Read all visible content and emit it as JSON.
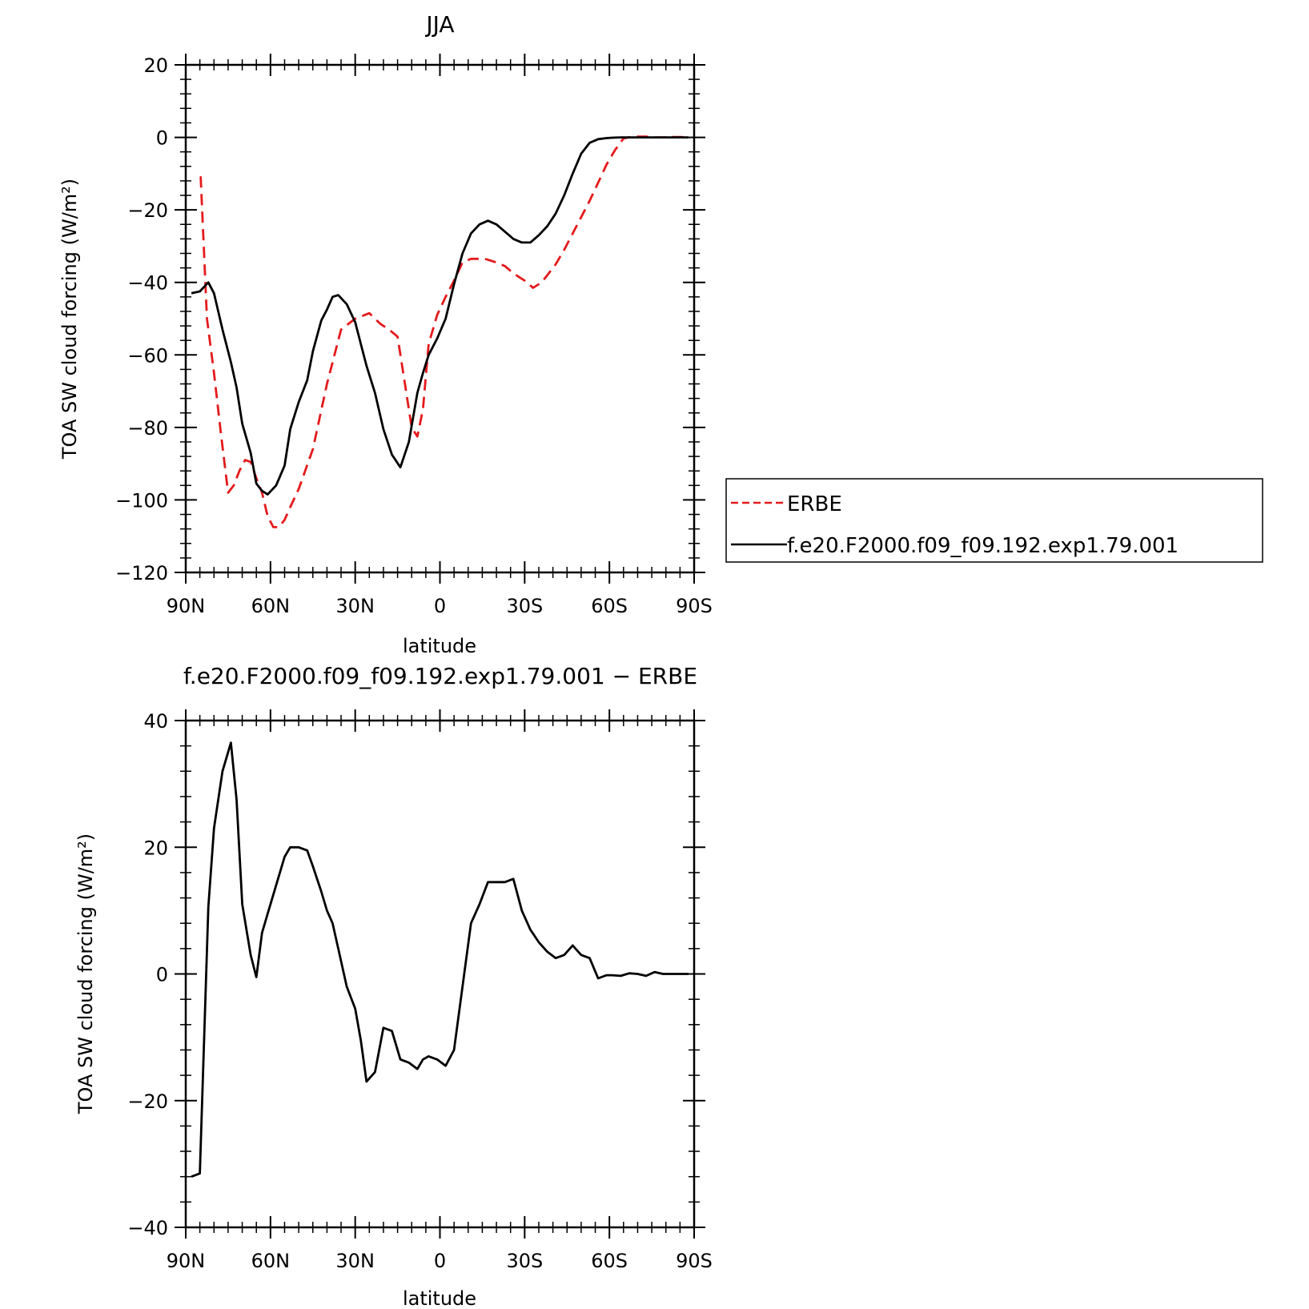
{
  "chart_data": [
    {
      "type": "line",
      "title": "JJA",
      "xlabel": "latitude",
      "ylabel": "TOA SW cloud forcing (W/m²)",
      "xlim": [
        90,
        -90
      ],
      "ylim": [
        -120,
        20
      ],
      "xticks": [
        90,
        60,
        30,
        0,
        -30,
        -60,
        -90
      ],
      "xtick_labels": [
        "90N",
        "60N",
        "30N",
        "0",
        "30S",
        "60S",
        "90S"
      ],
      "yticks": [
        20,
        0,
        -20,
        -40,
        -60,
        -80,
        -100,
        -120
      ],
      "ytick_labels": [
        "20",
        "0",
        "−20",
        "−40",
        "−60",
        "−80",
        "−100",
        "−120"
      ],
      "legend_position": "right",
      "series": [
        {
          "name": "ERBE",
          "color": "#e41a1c",
          "style": "dashed",
          "x": [
            85,
            84.7,
            82.5,
            80,
            77.5,
            75,
            73,
            71,
            69,
            67,
            65,
            63,
            61,
            59,
            57,
            55,
            53,
            50,
            45,
            40,
            35,
            30,
            25,
            21,
            18,
            15,
            12,
            10,
            8,
            6,
            4,
            1,
            -2,
            -5,
            -8,
            -11,
            -14,
            -16,
            -20,
            -23,
            -26,
            -30,
            -33,
            -36,
            -38,
            -41,
            -44,
            -47,
            -50,
            -53,
            -56,
            -59,
            -62,
            -65,
            -68,
            -70,
            -73,
            -76,
            -79,
            -82,
            -85,
            -88
          ],
          "y": [
            -11,
            -11,
            -50,
            -65,
            -82,
            -98,
            -96,
            -92,
            -89,
            -89.5,
            -94,
            -98,
            -104.5,
            -107.5,
            -107.5,
            -105.5,
            -102,
            -97,
            -86,
            -68,
            -53,
            -50,
            -48.5,
            -51.5,
            -53,
            -55,
            -70,
            -80,
            -82.5,
            -75,
            -57,
            -49,
            -44,
            -39.5,
            -34.5,
            -33.5,
            -33.5,
            -33.5,
            -34.5,
            -35.5,
            -37.5,
            -39.5,
            -41.5,
            -40,
            -38,
            -35,
            -31,
            -26.5,
            -22,
            -17.5,
            -12.5,
            -7.5,
            -3.5,
            -0.3,
            0.2,
            0.2,
            0.2,
            0,
            0,
            0.1,
            0.1,
            0
          ]
        },
        {
          "name": "f.e20.F2000.f09_f09.192.exp1.79.001",
          "color": "#000000",
          "style": "solid",
          "x": [
            88,
            85,
            82,
            80,
            77,
            74,
            72,
            70,
            67,
            65,
            63,
            61,
            58,
            55,
            53,
            50,
            47,
            45,
            42,
            40,
            38,
            36,
            33,
            30,
            28,
            26,
            23,
            20,
            17,
            14,
            11,
            8,
            6,
            4,
            1,
            -2,
            -5,
            -8,
            -11,
            -14,
            -17,
            -20,
            -23,
            -26,
            -29,
            -32,
            -35,
            -38,
            -41,
            -44,
            -47,
            -50,
            -53,
            -56,
            -59,
            -61,
            -64,
            -67,
            -70,
            -73,
            -76,
            -79,
            -82,
            -85,
            -88
          ],
          "y": [
            -43,
            -42.5,
            -40,
            -43,
            -53,
            -62,
            -69,
            -79,
            -87,
            -95.5,
            -97.5,
            -98.5,
            -96,
            -90.5,
            -80.5,
            -73,
            -67,
            -59,
            -50.5,
            -47.5,
            -44,
            -43.5,
            -46,
            -51,
            -57,
            -63,
            -70.5,
            -80.5,
            -87.5,
            -91,
            -84,
            -70.5,
            -65,
            -60,
            -55.5,
            -50,
            -40.5,
            -32,
            -26.5,
            -24,
            -23,
            -24,
            -26,
            -28,
            -29,
            -29,
            -27,
            -24.5,
            -21,
            -16,
            -10,
            -4.5,
            -1.5,
            -0.5,
            -0.2,
            -0.1,
            0,
            0,
            0,
            0,
            0,
            0,
            0,
            0,
            0
          ]
        }
      ]
    },
    {
      "type": "line",
      "title": "f.e20.F2000.f09_f09.192.exp1.79.001 − ERBE",
      "xlabel": "latitude",
      "ylabel": "TOA SW cloud forcing (W/m²)",
      "xlim": [
        90,
        -90
      ],
      "ylim": [
        -40,
        40
      ],
      "xticks": [
        90,
        60,
        30,
        0,
        -30,
        -60,
        -90
      ],
      "xtick_labels": [
        "90N",
        "60N",
        "30N",
        "0",
        "30S",
        "60S",
        "90S"
      ],
      "yticks": [
        40,
        20,
        0,
        -20,
        -40
      ],
      "ytick_labels": [
        "40",
        "20",
        "0",
        "−20",
        "−40"
      ],
      "series": [
        {
          "name": "",
          "color": "#000000",
          "style": "solid",
          "x": [
            88,
            85,
            82,
            80,
            77,
            74,
            72,
            70,
            67,
            65,
            63,
            61,
            58,
            55,
            53,
            50,
            47,
            45,
            42,
            40,
            38,
            36,
            33,
            30,
            28,
            26,
            23,
            20,
            17,
            14,
            11,
            8,
            6,
            4,
            1,
            -2,
            -5,
            -8,
            -11,
            -14,
            -17,
            -20,
            -23,
            -26,
            -29,
            -32,
            -35,
            -38,
            -41,
            -44,
            -47,
            -50,
            -53,
            -56,
            -59,
            -61,
            -64,
            -67,
            -70,
            -73,
            -76,
            -79,
            -82,
            -85,
            -88
          ],
          "y": [
            -32,
            -31.5,
            10.5,
            23,
            32,
            36.5,
            27.5,
            11,
            3,
            -0.5,
            6.5,
            9.5,
            14,
            18.5,
            20,
            20,
            19.5,
            17,
            13,
            10,
            8,
            4,
            -2,
            -5.5,
            -10.5,
            -17,
            -15.5,
            -8.5,
            -9,
            -13.5,
            -14,
            -15,
            -13.5,
            -13,
            -13.5,
            -14.5,
            -12,
            -2,
            8,
            11,
            14.5,
            14.5,
            14.5,
            15,
            10,
            7,
            5,
            3.5,
            2.5,
            3,
            4.5,
            3,
            2.5,
            -0.7,
            -0.2,
            -0.2,
            -0.3,
            0.1,
            0,
            -0.3,
            0.3,
            0,
            0,
            0,
            0
          ]
        }
      ]
    }
  ]
}
